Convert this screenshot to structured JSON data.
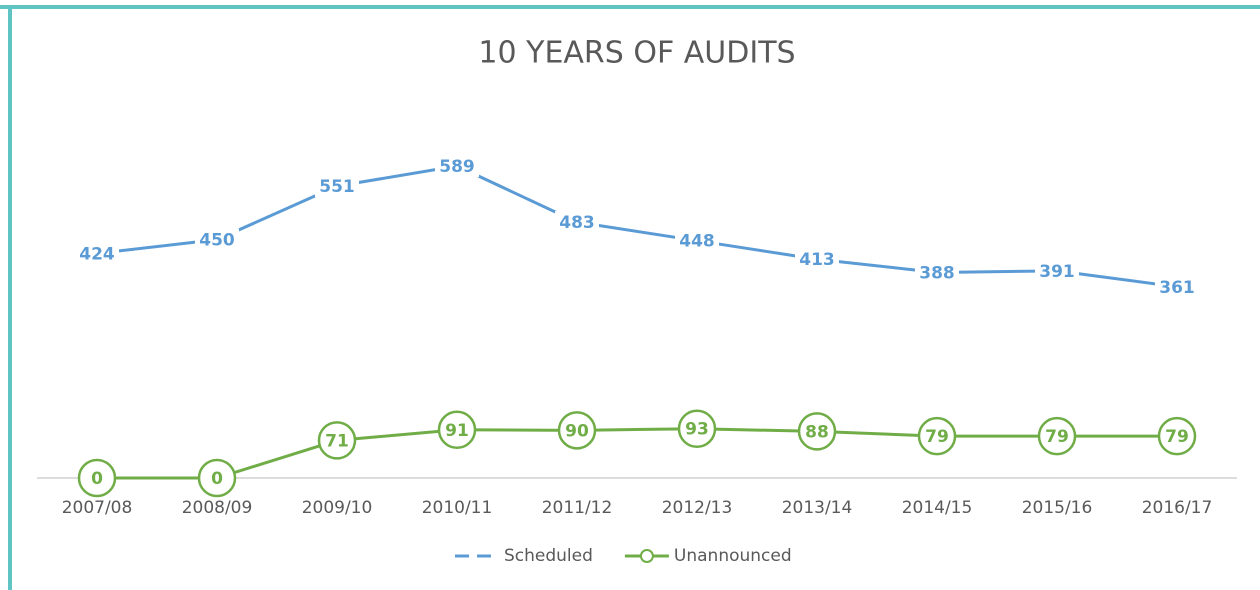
{
  "chart_data": {
    "type": "line",
    "title": "10 YEARS OF AUDITS",
    "categories": [
      "2007/08",
      "2008/09",
      "2009/10",
      "2010/11",
      "2011/12",
      "2012/13",
      "2013/14",
      "2014/15",
      "2015/16",
      "2016/17"
    ],
    "series": [
      {
        "name": "Scheduled",
        "color": "#5b9bd5",
        "marker": false,
        "values": [
          424,
          450,
          551,
          589,
          483,
          448,
          413,
          388,
          391,
          361
        ]
      },
      {
        "name": "Unannounced",
        "color": "#70ad47",
        "marker": true,
        "values": [
          0,
          0,
          71,
          91,
          90,
          93,
          88,
          79,
          79,
          79
        ]
      }
    ],
    "grid": false,
    "legend": "bottom"
  }
}
